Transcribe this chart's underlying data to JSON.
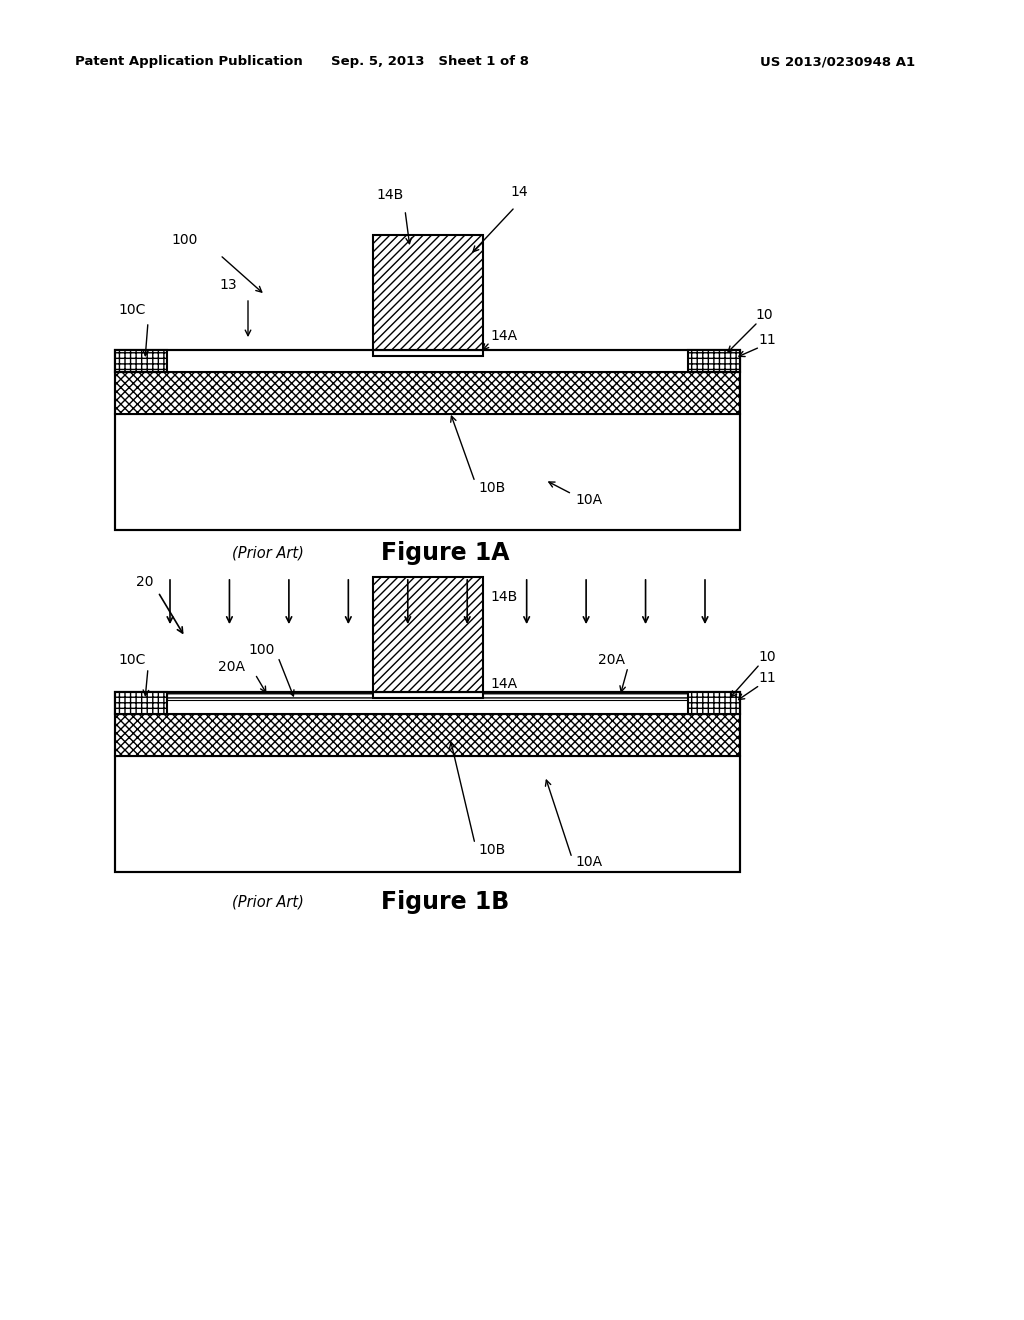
{
  "bg_color": "#ffffff",
  "header_left": "Patent Application Publication",
  "header_mid": "Sep. 5, 2013   Sheet 1 of 8",
  "header_right": "US 2013/0230948 A1",
  "fig1a_caption": "Figure 1A",
  "fig1a_prior_art": "(Prior Art)",
  "fig1b_caption": "Figure 1B",
  "fig1b_prior_art": "(Prior Art)",
  "line_color": "#000000",
  "bg_color2": "#ffffff"
}
